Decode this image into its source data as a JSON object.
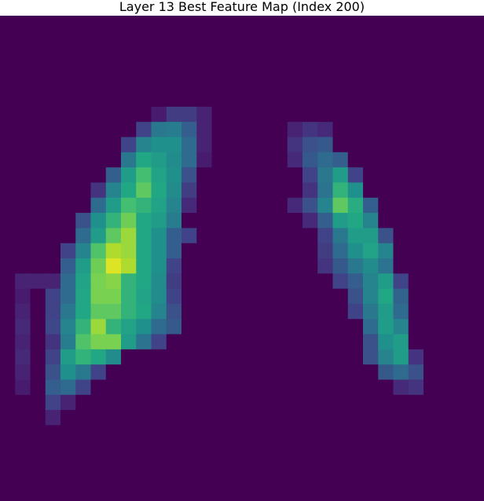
{
  "chart_data": {
    "type": "heatmap",
    "title": "Layer 13 Best Feature Map (Index 200)",
    "xlabel": "",
    "ylabel": "",
    "axes_visible": false,
    "grid": false,
    "colormap": "viridis",
    "value_range": [
      0,
      1
    ],
    "rows": 32,
    "cols": 32,
    "default_value": 0,
    "nonzero_cells": [
      [
        6,
        10,
        0.08
      ],
      [
        6,
        11,
        0.18
      ],
      [
        6,
        12,
        0.18
      ],
      [
        6,
        13,
        0.1
      ],
      [
        7,
        9,
        0.2
      ],
      [
        7,
        10,
        0.4
      ],
      [
        7,
        11,
        0.42
      ],
      [
        7,
        12,
        0.3
      ],
      [
        7,
        13,
        0.1
      ],
      [
        7,
        19,
        0.1
      ],
      [
        7,
        20,
        0.15
      ],
      [
        7,
        21,
        0.12
      ],
      [
        8,
        8,
        0.2
      ],
      [
        8,
        9,
        0.45
      ],
      [
        8,
        10,
        0.5
      ],
      [
        8,
        11,
        0.5
      ],
      [
        8,
        12,
        0.35
      ],
      [
        8,
        13,
        0.1
      ],
      [
        8,
        19,
        0.15
      ],
      [
        8,
        20,
        0.25
      ],
      [
        8,
        21,
        0.28
      ],
      [
        9,
        8,
        0.4
      ],
      [
        9,
        9,
        0.6
      ],
      [
        9,
        10,
        0.55
      ],
      [
        9,
        11,
        0.48
      ],
      [
        9,
        12,
        0.35
      ],
      [
        9,
        13,
        0.08
      ],
      [
        9,
        19,
        0.12
      ],
      [
        9,
        20,
        0.28
      ],
      [
        9,
        21,
        0.35
      ],
      [
        9,
        22,
        0.3
      ],
      [
        10,
        7,
        0.3
      ],
      [
        10,
        8,
        0.55
      ],
      [
        10,
        9,
        0.7
      ],
      [
        10,
        10,
        0.58
      ],
      [
        10,
        11,
        0.5
      ],
      [
        10,
        12,
        0.25
      ],
      [
        10,
        20,
        0.2
      ],
      [
        10,
        21,
        0.4
      ],
      [
        10,
        22,
        0.55
      ],
      [
        10,
        23,
        0.2
      ],
      [
        11,
        6,
        0.15
      ],
      [
        11,
        7,
        0.45
      ],
      [
        11,
        8,
        0.6
      ],
      [
        11,
        9,
        0.75
      ],
      [
        11,
        10,
        0.6
      ],
      [
        11,
        11,
        0.48
      ],
      [
        11,
        12,
        0.18
      ],
      [
        11,
        20,
        0.15
      ],
      [
        11,
        21,
        0.38
      ],
      [
        11,
        22,
        0.65
      ],
      [
        11,
        23,
        0.5
      ],
      [
        12,
        6,
        0.35
      ],
      [
        12,
        7,
        0.55
      ],
      [
        12,
        8,
        0.7
      ],
      [
        12,
        9,
        0.65
      ],
      [
        12,
        10,
        0.58
      ],
      [
        12,
        11,
        0.45
      ],
      [
        12,
        12,
        0.12
      ],
      [
        12,
        19,
        0.12
      ],
      [
        12,
        20,
        0.25
      ],
      [
        12,
        21,
        0.45
      ],
      [
        12,
        22,
        0.75
      ],
      [
        12,
        23,
        0.62
      ],
      [
        12,
        24,
        0.3
      ],
      [
        13,
        5,
        0.25
      ],
      [
        13,
        6,
        0.5
      ],
      [
        13,
        7,
        0.65
      ],
      [
        13,
        8,
        0.78
      ],
      [
        13,
        9,
        0.6
      ],
      [
        13,
        10,
        0.55
      ],
      [
        13,
        11,
        0.42
      ],
      [
        13,
        20,
        0.12
      ],
      [
        13,
        21,
        0.3
      ],
      [
        13,
        22,
        0.55
      ],
      [
        13,
        23,
        0.6
      ],
      [
        13,
        24,
        0.45
      ],
      [
        14,
        5,
        0.35
      ],
      [
        14,
        6,
        0.55
      ],
      [
        14,
        7,
        0.75
      ],
      [
        14,
        8,
        0.85
      ],
      [
        14,
        9,
        0.6
      ],
      [
        14,
        10,
        0.5
      ],
      [
        14,
        11,
        0.3
      ],
      [
        14,
        12,
        0.2
      ],
      [
        14,
        21,
        0.2
      ],
      [
        14,
        22,
        0.4
      ],
      [
        14,
        23,
        0.55
      ],
      [
        14,
        24,
        0.55
      ],
      [
        14,
        25,
        0.25
      ],
      [
        15,
        4,
        0.2
      ],
      [
        15,
        5,
        0.45
      ],
      [
        15,
        6,
        0.72
      ],
      [
        15,
        7,
        0.88
      ],
      [
        15,
        8,
        0.85
      ],
      [
        15,
        9,
        0.6
      ],
      [
        15,
        10,
        0.5
      ],
      [
        15,
        11,
        0.3
      ],
      [
        15,
        21,
        0.18
      ],
      [
        15,
        22,
        0.35
      ],
      [
        15,
        23,
        0.5
      ],
      [
        15,
        24,
        0.58
      ],
      [
        15,
        25,
        0.45
      ],
      [
        16,
        4,
        0.3
      ],
      [
        16,
        5,
        0.55
      ],
      [
        16,
        6,
        0.78
      ],
      [
        16,
        7,
        0.95
      ],
      [
        16,
        8,
        0.88
      ],
      [
        16,
        9,
        0.6
      ],
      [
        16,
        10,
        0.5
      ],
      [
        16,
        11,
        0.2
      ],
      [
        16,
        21,
        0.15
      ],
      [
        16,
        22,
        0.28
      ],
      [
        16,
        23,
        0.4
      ],
      [
        16,
        24,
        0.48
      ],
      [
        16,
        25,
        0.38
      ],
      [
        17,
        1,
        0.1
      ],
      [
        17,
        2,
        0.1
      ],
      [
        17,
        3,
        0.1
      ],
      [
        17,
        4,
        0.35
      ],
      [
        17,
        5,
        0.58
      ],
      [
        17,
        6,
        0.8
      ],
      [
        17,
        7,
        0.82
      ],
      [
        17,
        8,
        0.65
      ],
      [
        17,
        9,
        0.6
      ],
      [
        17,
        10,
        0.48
      ],
      [
        17,
        11,
        0.18
      ],
      [
        17,
        22,
        0.2
      ],
      [
        17,
        23,
        0.3
      ],
      [
        17,
        24,
        0.45
      ],
      [
        17,
        25,
        0.55
      ],
      [
        17,
        26,
        0.2
      ],
      [
        18,
        1,
        0.08
      ],
      [
        18,
        3,
        0.2
      ],
      [
        18,
        4,
        0.35
      ],
      [
        18,
        5,
        0.6
      ],
      [
        18,
        6,
        0.8
      ],
      [
        18,
        7,
        0.8
      ],
      [
        18,
        8,
        0.65
      ],
      [
        18,
        9,
        0.58
      ],
      [
        18,
        10,
        0.48
      ],
      [
        18,
        11,
        0.2
      ],
      [
        18,
        23,
        0.25
      ],
      [
        18,
        24,
        0.45
      ],
      [
        18,
        25,
        0.6
      ],
      [
        18,
        26,
        0.32
      ],
      [
        19,
        1,
        0.1
      ],
      [
        19,
        3,
        0.2
      ],
      [
        19,
        4,
        0.4
      ],
      [
        19,
        5,
        0.6
      ],
      [
        19,
        6,
        0.75
      ],
      [
        19,
        7,
        0.75
      ],
      [
        19,
        8,
        0.65
      ],
      [
        19,
        9,
        0.6
      ],
      [
        19,
        10,
        0.45
      ],
      [
        19,
        11,
        0.25
      ],
      [
        19,
        23,
        0.2
      ],
      [
        19,
        24,
        0.4
      ],
      [
        19,
        25,
        0.55
      ],
      [
        19,
        26,
        0.35
      ],
      [
        20,
        1,
        0.12
      ],
      [
        20,
        3,
        0.22
      ],
      [
        20,
        4,
        0.45
      ],
      [
        20,
        5,
        0.65
      ],
      [
        20,
        6,
        0.85
      ],
      [
        20,
        7,
        0.65
      ],
      [
        20,
        8,
        0.58
      ],
      [
        20,
        9,
        0.5
      ],
      [
        20,
        10,
        0.35
      ],
      [
        20,
        11,
        0.28
      ],
      [
        20,
        24,
        0.35
      ],
      [
        20,
        25,
        0.55
      ],
      [
        20,
        26,
        0.45
      ],
      [
        21,
        1,
        0.1
      ],
      [
        21,
        3,
        0.15
      ],
      [
        21,
        4,
        0.42
      ],
      [
        21,
        5,
        0.72
      ],
      [
        21,
        6,
        0.8
      ],
      [
        21,
        7,
        0.8
      ],
      [
        21,
        8,
        0.55
      ],
      [
        21,
        9,
        0.38
      ],
      [
        21,
        10,
        0.2
      ],
      [
        21,
        24,
        0.25
      ],
      [
        21,
        25,
        0.5
      ],
      [
        21,
        26,
        0.55
      ],
      [
        22,
        1,
        0.12
      ],
      [
        22,
        3,
        0.2
      ],
      [
        22,
        4,
        0.55
      ],
      [
        22,
        5,
        0.65
      ],
      [
        22,
        6,
        0.6
      ],
      [
        22,
        7,
        0.48
      ],
      [
        22,
        24,
        0.25
      ],
      [
        22,
        25,
        0.45
      ],
      [
        22,
        26,
        0.55
      ],
      [
        22,
        27,
        0.15
      ],
      [
        23,
        1,
        0.1
      ],
      [
        23,
        3,
        0.25
      ],
      [
        23,
        4,
        0.5
      ],
      [
        23,
        5,
        0.4
      ],
      [
        23,
        6,
        0.2
      ],
      [
        23,
        25,
        0.28
      ],
      [
        23,
        26,
        0.35
      ],
      [
        23,
        27,
        0.25
      ],
      [
        24,
        1,
        0.08
      ],
      [
        24,
        3,
        0.3
      ],
      [
        24,
        4,
        0.35
      ],
      [
        24,
        5,
        0.2
      ],
      [
        24,
        26,
        0.12
      ],
      [
        24,
        27,
        0.15
      ],
      [
        25,
        3,
        0.2
      ],
      [
        25,
        4,
        0.1
      ],
      [
        26,
        3,
        0.1
      ]
    ]
  }
}
